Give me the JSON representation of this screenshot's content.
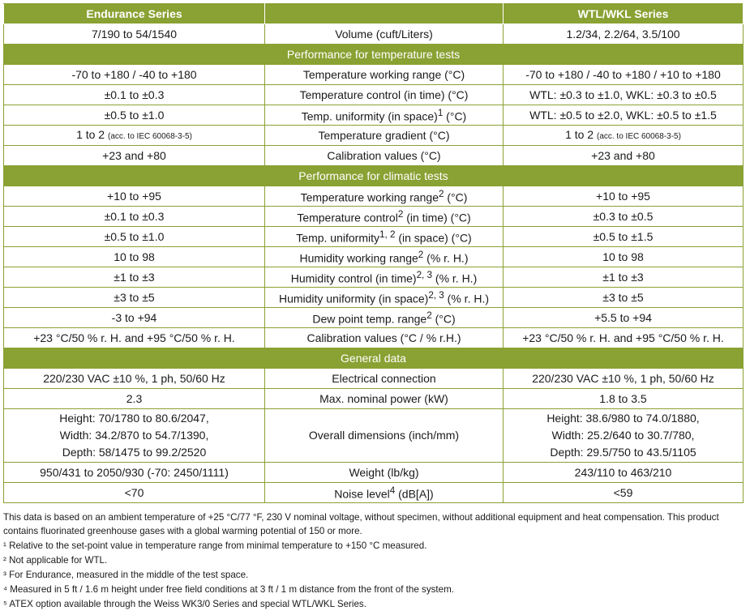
{
  "header": {
    "left": "Endurance Series",
    "middle": "",
    "right": "WTL/WKL Series"
  },
  "volume": {
    "left": "7/190 to 54/1540",
    "label": "Volume (cuft/Liters)",
    "right": "1.2/34,  2.2/64,  3.5/100"
  },
  "sections": {
    "temperature": "Performance for temperature tests",
    "climatic": "Performance for climatic tests",
    "general": "General data"
  },
  "temperature_rows": [
    {
      "left": "-70 to +180 / -40 to +180",
      "label": "Temperature working range (°C)",
      "right": "-70 to +180 / -40 to +180 / +10 to +180"
    },
    {
      "left": "±0.1 to ±0.3",
      "label": "Temperature control (in time) (°C)",
      "right": "WTL: ±0.3 to ±1.0, WKL: ±0.3 to ±0.5"
    },
    {
      "left": "±0.5 to ±1.0",
      "label_pre": "Temp. uniformity (in space)",
      "label_sup": "1",
      "label_post": " (°C)",
      "right": "WTL: ±0.5 to ±2.0, WKL: ±0.5 to ±1.5"
    },
    {
      "left_main": "1 to 2",
      "left_note": "(acc. to IEC 60068-3-5)",
      "label": "Temperature gradient (°C)",
      "right_main": "1 to 2",
      "right_note": "(acc. to IEC 60068-3-5)"
    },
    {
      "left": "+23 and +80",
      "label": "Calibration values (°C)",
      "right": "+23 and +80"
    }
  ],
  "climatic_rows": [
    {
      "left": "+10 to +95",
      "label_pre": "Temperature working range",
      "label_sup": "2",
      "label_post": " (°C)",
      "right": "+10 to +95"
    },
    {
      "left": "±0.1 to ±0.3",
      "label_pre": "Temperature control",
      "label_sup": "2",
      "label_post": " (in time) (°C)",
      "right": "±0.3 to ±0.5"
    },
    {
      "left": "±0.5 to ±1.0",
      "label_pre": "Temp. uniformity",
      "label_sup": "1, 2",
      "label_post": " (in space) (°C)",
      "right": "±0.5 to ±1.5"
    },
    {
      "left": "10 to 98",
      "label_pre": "Humidity working range",
      "label_sup": "2",
      "label_post": " (% r. H.)",
      "right": "10 to 98"
    },
    {
      "left": "±1 to ±3",
      "label_pre": "Humidity control (in time)",
      "label_sup": "2, 3",
      "label_post": " (% r. H.)",
      "right": "±1 to ±3"
    },
    {
      "left": "±3 to ±5",
      "label_pre": "Humidity uniformity (in space)",
      "label_sup": "2, 3",
      "label_post": " (% r. H.)",
      "right": "±3 to ±5"
    },
    {
      "left": "-3 to +94",
      "label_pre": "Dew point temp. range",
      "label_sup": "2",
      "label_post": " (°C)",
      "right": "+5.5 to +94"
    },
    {
      "left": "+23 °C/50 % r. H. and +95 °C/50 % r. H.",
      "label": "Calibration values (°C / % r.H.)",
      "right": "+23 °C/50 % r. H. and +95 °C/50 % r. H."
    }
  ],
  "general_rows": {
    "electrical": {
      "left": "220/230 VAC ±10 %, 1 ph, 50/60 Hz",
      "label": "Electrical connection",
      "right": "220/230 VAC ±10 %, 1 ph, 50/60 Hz"
    },
    "power": {
      "left": "2.3",
      "label": "Max. nominal power (kW)",
      "right": "1.8 to 3.5"
    },
    "dimensions": {
      "left_lines": [
        "Height: 70/1780 to 80.6/2047,",
        "Width: 34.2/870 to 54.7/1390,",
        "Depth: 58/1475 to 99.2/2520"
      ],
      "label": "Overall dimensions (inch/mm)",
      "right_lines": [
        "Height: 38.6/980 to 74.0/1880,",
        "Width: 25.2/640 to 30.7/780,",
        "Depth: 29.5/750 to 43.5/1105"
      ]
    },
    "weight": {
      "left": "950/431 to 2050/930 (-70: 2450/1111)",
      "label": "Weight (lb/kg)",
      "right": "243/110 to 463/210"
    },
    "noise": {
      "left": "<70",
      "label_pre": "Noise level",
      "label_sup": "4",
      "label_post": " (dB[A])",
      "right": "<59"
    }
  },
  "footnotes": {
    "intro": "This data is based on an ambient temperature of +25 °C/77 °F, 230 V nominal voltage, without specimen, without additional equipment and heat compensation. This product contains fluorinated greenhouse gases with a global warming potential of 150 or more.",
    "items": [
      "¹ Relative to the set-point value in temperature range from minimal temperature to +150 °C measured.",
      "² Not applicable for WTL.",
      "³ For Endurance, measured in the middle of the test space.",
      "⁴ Measured in 5 ft / 1.6 m height under free field conditions at 3 ft / 1 m distance from the front of the system.",
      "⁵ ATEX option available through the Weiss WK3/0 Series and special WTL/WKL Series."
    ]
  },
  "colors": {
    "accent": "#8aa133",
    "text": "#1a1a1a",
    "header_text": "#ffffff"
  }
}
